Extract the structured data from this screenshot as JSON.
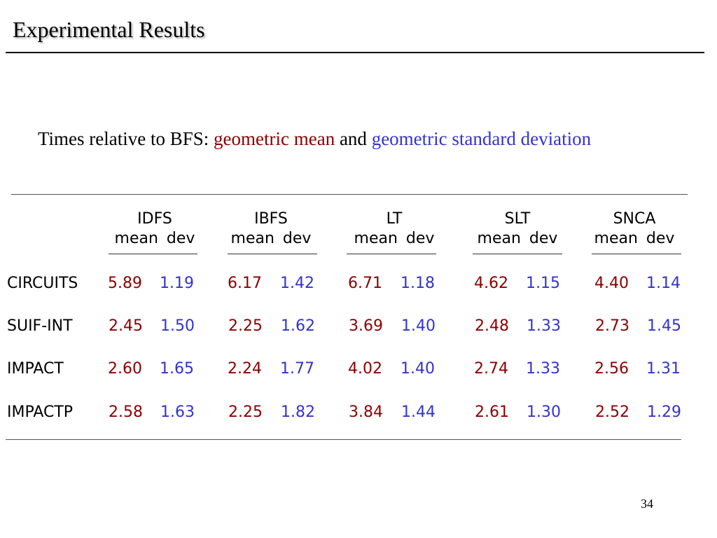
{
  "title": "Experimental Results",
  "subtitle": {
    "prefix": "Times relative to BFS: ",
    "mean_text": "geometric mean",
    "connector": " and ",
    "dev_text": "geometric standard deviation"
  },
  "table": {
    "groups": [
      {
        "name": "IDFS",
        "mean_label": "mean",
        "dev_label": "dev"
      },
      {
        "name": "IBFS",
        "mean_label": "mean",
        "dev_label": "dev"
      },
      {
        "name": "LT",
        "mean_label": "mean",
        "dev_label": "dev"
      },
      {
        "name": "SLT",
        "mean_label": "mean",
        "dev_label": "dev"
      },
      {
        "name": "SNCA",
        "mean_label": "mean",
        "dev_label": "dev"
      }
    ],
    "rows": [
      {
        "label": "CIRCUITS",
        "values": [
          [
            "5.89",
            "1.19"
          ],
          [
            "6.17",
            "1.42"
          ],
          [
            "6.71",
            "1.18"
          ],
          [
            "4.62",
            "1.15"
          ],
          [
            "4.40",
            "1.14"
          ]
        ]
      },
      {
        "label": "SUIF-INT",
        "values": [
          [
            "2.45",
            "1.50"
          ],
          [
            "2.25",
            "1.62"
          ],
          [
            "3.69",
            "1.40"
          ],
          [
            "2.48",
            "1.33"
          ],
          [
            "2.73",
            "1.45"
          ]
        ]
      },
      {
        "label": "IMPACT",
        "values": [
          [
            "2.60",
            "1.65"
          ],
          [
            "2.24",
            "1.77"
          ],
          [
            "4.02",
            "1.40"
          ],
          [
            "2.74",
            "1.33"
          ],
          [
            "2.56",
            "1.31"
          ]
        ]
      },
      {
        "label": "IMPACTP",
        "values": [
          [
            "2.58",
            "1.63"
          ],
          [
            "2.25",
            "1.82"
          ],
          [
            "3.84",
            "1.44"
          ],
          [
            "2.61",
            "1.30"
          ],
          [
            "2.52",
            "1.29"
          ]
        ]
      }
    ]
  },
  "page_number": "34",
  "colors": {
    "mean": "#8b0000",
    "dev": "#3333cc"
  }
}
